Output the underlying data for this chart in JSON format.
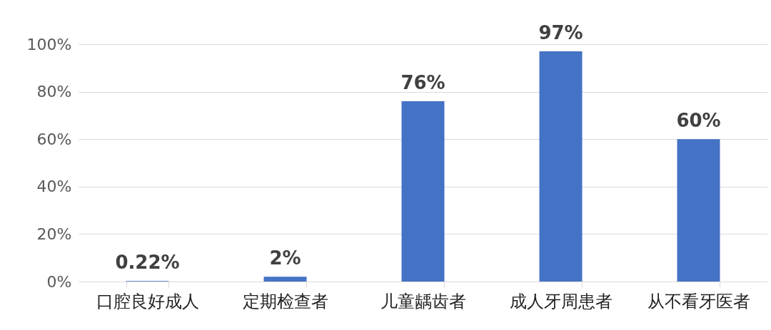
{
  "chart_data": {
    "type": "bar",
    "categories": [
      "口腔良好成人",
      "定期检查者",
      "儿童龋齿者",
      "成人牙周患者",
      "从不看牙医者"
    ],
    "values": [
      0.22,
      2,
      76,
      97,
      60
    ],
    "value_labels": [
      "0.22%",
      "2%",
      "76%",
      "97%",
      "60%"
    ],
    "color": "#4472c4",
    "ylim": [
      0,
      100
    ],
    "yticks": [
      {
        "value": 0,
        "label": "0%"
      },
      {
        "value": 20,
        "label": "20%"
      },
      {
        "value": 40,
        "label": "40%"
      },
      {
        "value": 60,
        "label": "60%"
      },
      {
        "value": 80,
        "label": "80%"
      },
      {
        "value": 100,
        "label": "100%"
      }
    ],
    "grid": "y"
  }
}
